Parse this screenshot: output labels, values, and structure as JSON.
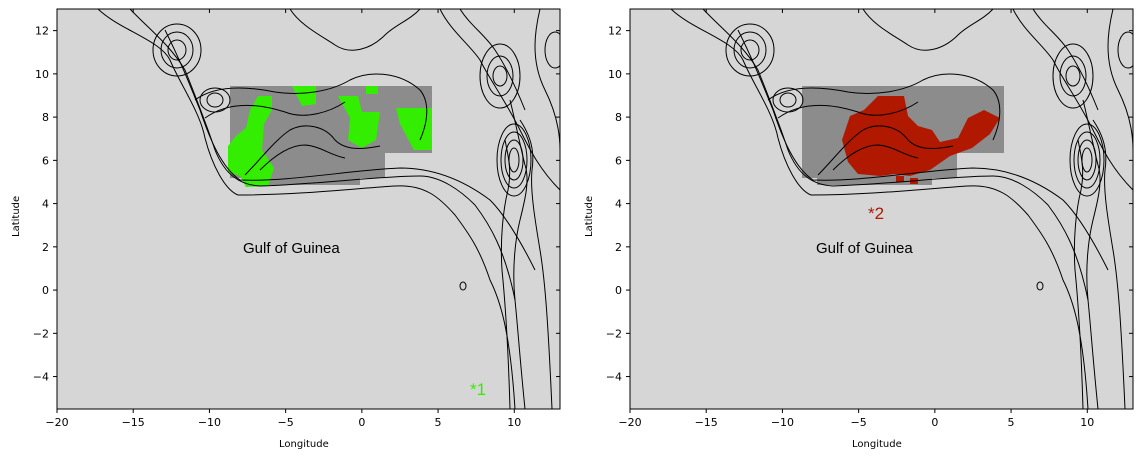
{
  "maps": [
    {
      "xlabel": "Longitude",
      "ylabel": "Latitude",
      "xticks": [
        "−20",
        "−15",
        "−10",
        "−5",
        "0",
        "5",
        "10"
      ],
      "yticks": [
        "12",
        "10",
        "8",
        "6",
        "4",
        "2",
        "0",
        "−2",
        "−4"
      ],
      "place_label": "Gulf of Guinea",
      "marker_label": "*1",
      "highlight_color": "#33ee00",
      "grey_color": "#8c8c8c",
      "background_color": "#d6d6d6"
    },
    {
      "xlabel": "Longitude",
      "ylabel": "Latitude",
      "xticks": [
        "−20",
        "−15",
        "−10",
        "−5",
        "0",
        "5",
        "10"
      ],
      "yticks": [
        "12",
        "10",
        "8",
        "6",
        "4",
        "2",
        "0",
        "−2",
        "−4"
      ],
      "place_label": "Gulf of Guinea",
      "marker_label": "*2",
      "highlight_color": "#b01800",
      "grey_color": "#8c8c8c",
      "background_color": "#d6d6d6"
    }
  ],
  "chart_data": [
    {
      "type": "map",
      "xlim": [
        -20,
        13
      ],
      "ylim": [
        -5.5,
        13
      ],
      "xticks": [
        -20,
        -15,
        -10,
        -5,
        0,
        5,
        10
      ],
      "yticks": [
        12,
        10,
        8,
        6,
        4,
        2,
        0,
        -2,
        -4
      ],
      "grey_region": {
        "lon": [
          -9,
          4.5
        ],
        "lat": [
          4.5,
          9.5
        ]
      },
      "highlight": "green cells over the Gulf of Guinea coastal shelf",
      "marker": {
        "label": "*1",
        "lon": 7.5,
        "lat": -4.5
      }
    },
    {
      "type": "map",
      "xlim": [
        -20,
        13
      ],
      "ylim": [
        -5.5,
        13
      ],
      "xticks": [
        -20,
        -15,
        -10,
        -5,
        0,
        5,
        10
      ],
      "yticks": [
        12,
        10,
        8,
        6,
        4,
        2,
        0,
        -2,
        -4
      ],
      "grey_region": {
        "lon": [
          -9,
          4.5
        ],
        "lat": [
          4.5,
          9.5
        ]
      },
      "highlight": "red cells over the Gulf of Guinea coastal shelf",
      "marker": {
        "label": "*2",
        "lon": -4,
        "lat": 3.5
      }
    }
  ]
}
